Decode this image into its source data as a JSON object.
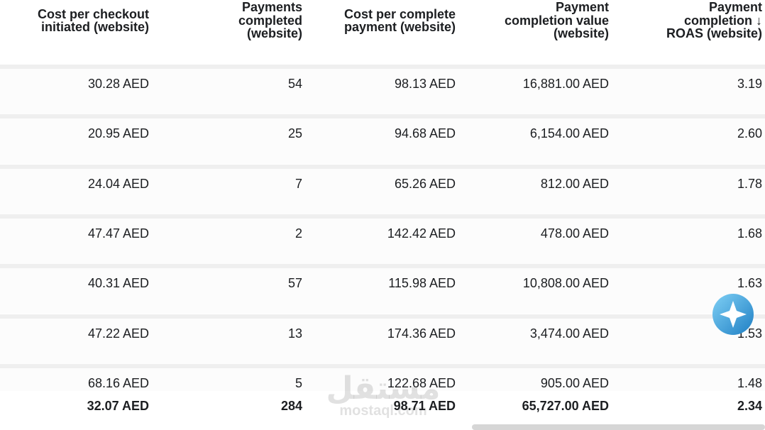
{
  "table": {
    "headers": [
      [
        "Cost per checkout",
        "initiated (website)"
      ],
      [
        "Payments",
        "completed",
        "(website)"
      ],
      [
        "Cost per complete",
        "payment (website)"
      ],
      [
        "Payment",
        "completion value",
        "(website)"
      ],
      [
        "Payment",
        "completion ↓",
        "ROAS (website)"
      ]
    ],
    "rows": [
      [
        "30.28 AED",
        "54",
        "98.13 AED",
        "16,881.00 AED",
        "3.19"
      ],
      [
        "20.95 AED",
        "25",
        "94.68 AED",
        "6,154.00 AED",
        "2.60"
      ],
      [
        "24.04 AED",
        "7",
        "65.26 AED",
        "812.00 AED",
        "1.78"
      ],
      [
        "47.47 AED",
        "2",
        "142.42 AED",
        "478.00 AED",
        "1.68"
      ],
      [
        "40.31 AED",
        "57",
        "115.98 AED",
        "10,808.00 AED",
        "1.63"
      ],
      [
        "47.22 AED",
        "13",
        "174.36 AED",
        "3,474.00 AED",
        "1.53"
      ],
      [
        "68.16 AED",
        "5",
        "122.68 AED",
        "905.00 AED",
        "1.48"
      ]
    ],
    "total": [
      "32.07 AED",
      "284",
      "98.71 AED",
      "65,727.00 AED",
      "2.34"
    ]
  },
  "watermark": {
    "arabic": "مستقل",
    "latin": "mostaql.com"
  }
}
